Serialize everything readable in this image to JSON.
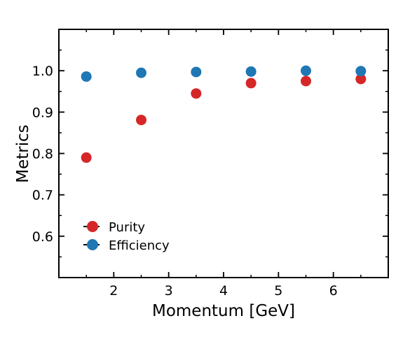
{
  "chart_data": {
    "type": "scatter",
    "xlabel": "Momentum [GeV]",
    "ylabel": "Metrics",
    "xlim": [
      1.0,
      7.0
    ],
    "ylim": [
      0.5,
      1.1
    ],
    "xticks": [
      2,
      3,
      4,
      5,
      6
    ],
    "yticks": [
      0.6,
      0.7,
      0.8,
      0.9,
      1.0
    ],
    "xtick_labels": [
      "2",
      "3",
      "4",
      "5",
      "6"
    ],
    "ytick_labels": [
      "0.6",
      "0.7",
      "0.8",
      "0.9",
      "1.0"
    ],
    "x_minor_step": 0.5,
    "y_minor_step": 0.05,
    "grid": false,
    "legend_position": "lower-left",
    "series": [
      {
        "name": "Purity",
        "color": "#d62728",
        "x": [
          1.5,
          2.5,
          3.5,
          4.5,
          5.5,
          6.5
        ],
        "y": [
          0.79,
          0.881,
          0.945,
          0.97,
          0.975,
          0.98
        ]
      },
      {
        "name": "Efficiency",
        "color": "#1f77b4",
        "x": [
          1.5,
          2.5,
          3.5,
          4.5,
          5.5,
          6.5
        ],
        "y": [
          0.986,
          0.995,
          0.997,
          0.998,
          1.0,
          0.999
        ]
      }
    ]
  }
}
